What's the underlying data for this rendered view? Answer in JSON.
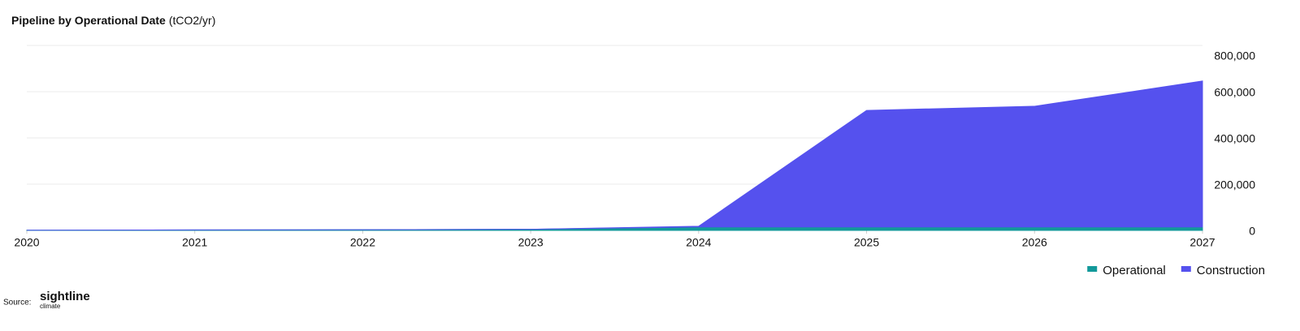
{
  "chart_data": {
    "type": "stacked_area",
    "title": "Pipeline by Operational Date",
    "title_unit": "(tCO2/yr)",
    "x": [
      2020,
      2021,
      2022,
      2023,
      2024,
      2025,
      2026,
      2027
    ],
    "xlim": [
      2020,
      2027
    ],
    "xticks": [
      2020,
      2021,
      2022,
      2023,
      2024,
      2025,
      2026,
      2027
    ],
    "ylim": [
      0,
      800000
    ],
    "yticks": [
      0,
      {
        "value": 200000,
        "label": "200,000"
      },
      {
        "value": 400000,
        "label": "400,000"
      },
      {
        "value": 600000,
        "label": "600,000"
      },
      {
        "value": 800000,
        "label": "800,000"
      }
    ],
    "grid": true,
    "y_axis_side": "right",
    "legend": "bottom-right",
    "series": [
      {
        "name": "Operational",
        "color": "#12999a",
        "values": [
          1000,
          2000,
          3000,
          5000,
          15000,
          15000,
          15000,
          15000
        ]
      },
      {
        "name": "Construction",
        "color": "#5551ee",
        "values": [
          0,
          0,
          0,
          0,
          3000,
          504000,
          522000,
          631000
        ]
      }
    ]
  },
  "footer": {
    "source": "Source:",
    "logo": "sightline",
    "logo_sub": "climate"
  }
}
